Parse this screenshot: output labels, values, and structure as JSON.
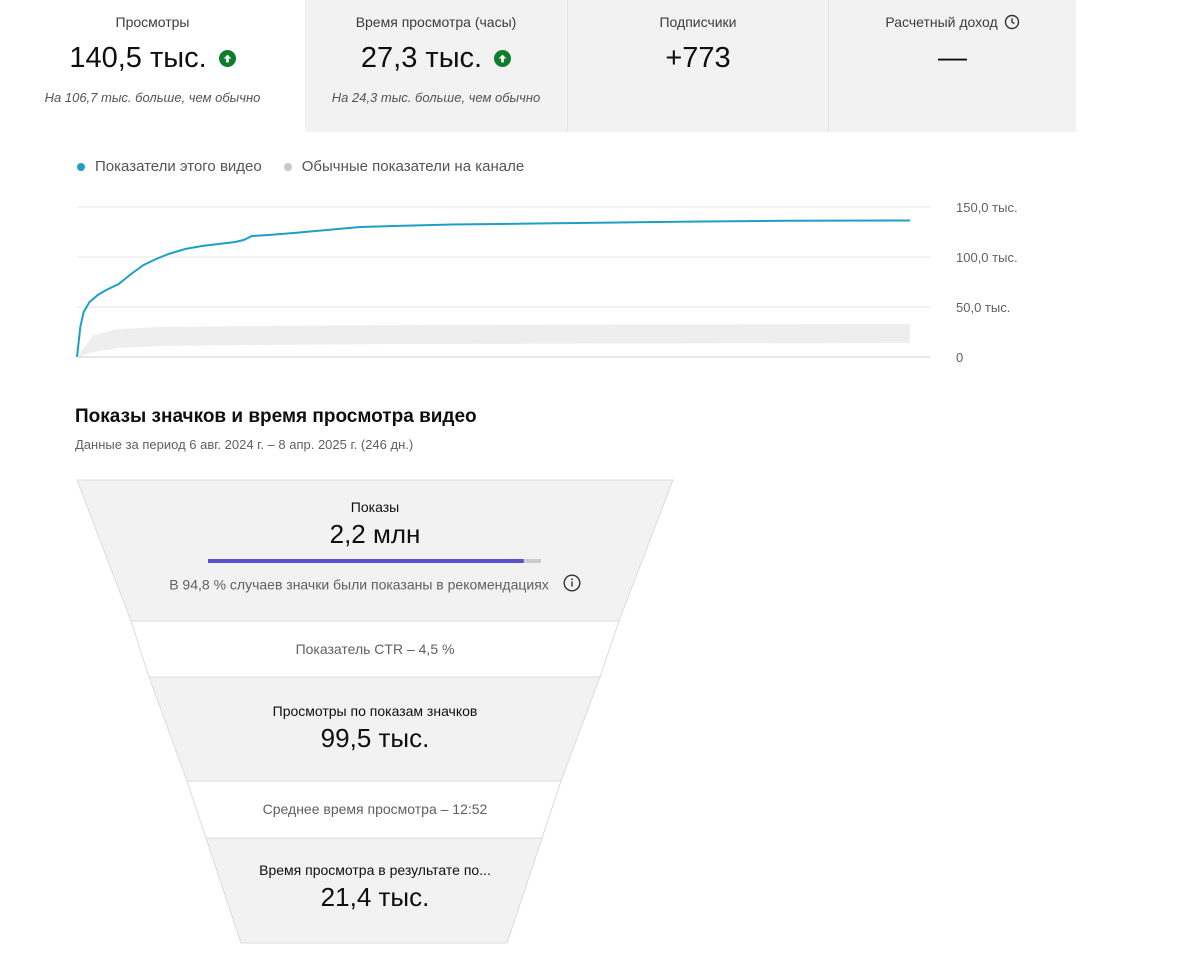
{
  "metrics": [
    {
      "label": "Просмотры",
      "value": "140,5 тыс.",
      "sub": "На 106,7 тыс. больше, чем обычно",
      "trend": "up"
    },
    {
      "label": "Время просмотра (часы)",
      "value": "27,3 тыс.",
      "sub": "На 24,3 тыс. больше, чем обычно",
      "trend": "up"
    },
    {
      "label": "Подписчики",
      "value": "+773"
    },
    {
      "label": "Расчетный доход",
      "value": "—",
      "icon": "clock-icon"
    }
  ],
  "legend": {
    "this_video": "Показатели этого видео",
    "typical": "Обычные показатели на канале"
  },
  "colors": {
    "series_line": "#1e9fc6",
    "typical_band": "#eeeeee",
    "up_badge": "#0f7d2d",
    "impressions_bar": "#5a4fcf"
  },
  "chart_data": {
    "type": "line",
    "ytick_labels": [
      "150,0 тыс.",
      "100,0 тыс.",
      "50,0 тыс.",
      "0"
    ],
    "ylim": [
      0,
      150000
    ],
    "series": [
      {
        "name": "Показатели этого видео",
        "x_fraction": [
          0,
          0.004,
          0.008,
          0.015,
          0.025,
          0.035,
          0.05,
          0.065,
          0.08,
          0.095,
          0.11,
          0.13,
          0.15,
          0.17,
          0.19,
          0.2,
          0.21,
          0.23,
          0.26,
          0.3,
          0.34,
          0.38,
          0.45,
          0.55,
          0.65,
          0.75,
          0.85,
          1
        ],
        "values": [
          0,
          30000,
          45000,
          55000,
          62000,
          67000,
          73000,
          83000,
          92000,
          98000,
          103000,
          108000,
          111000,
          113000,
          115000,
          117000,
          121000,
          122000,
          124000,
          127000,
          130000,
          131000,
          132500,
          133500,
          134500,
          135500,
          136200,
          136500
        ]
      },
      {
        "name": "Обычные показатели на канале",
        "x_fraction": [
          0,
          0.02,
          0.05,
          0.1,
          0.2,
          0.4,
          0.7,
          1
        ],
        "values_low": [
          0,
          5000,
          9000,
          11000,
          12000,
          13000,
          13500,
          14000
        ],
        "values_high": [
          0,
          22000,
          28000,
          30000,
          31000,
          32000,
          32500,
          33000
        ]
      }
    ]
  },
  "funnel": {
    "title": "Показы значков и время просмотра видео",
    "subtitle": "Данные за период 6 авг. 2024 г. – 8 апр. 2025 г. (246 дн.)",
    "impressions_label": "Показы",
    "impressions_value": "2,2 млн",
    "impressions_bar_fraction": 0.948,
    "impressions_note": "В 94,8 % случаев значки были показаны в рекомендациях",
    "ctr_text": "Показатель CTR – 4,5 %",
    "views_label": "Просмотры по показам значков",
    "views_value": "99,5 тыс.",
    "avg_duration_text": "Среднее время просмотра – 12:52",
    "watch_label": "Время просмотра в результате по...",
    "watch_value": "21,4 тыс."
  }
}
